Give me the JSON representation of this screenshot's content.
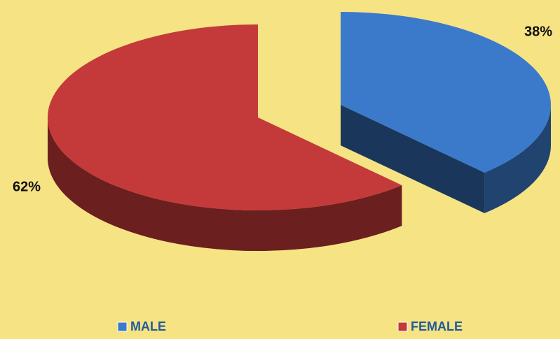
{
  "chart_data": {
    "type": "pie3d",
    "categories": [
      "MALE",
      "FEMALE"
    ],
    "values": [
      38,
      62
    ],
    "value_labels": [
      "38%",
      "62%"
    ],
    "colors": [
      "#3b7acb",
      "#c43a3a"
    ],
    "legend": "bottom"
  }
}
